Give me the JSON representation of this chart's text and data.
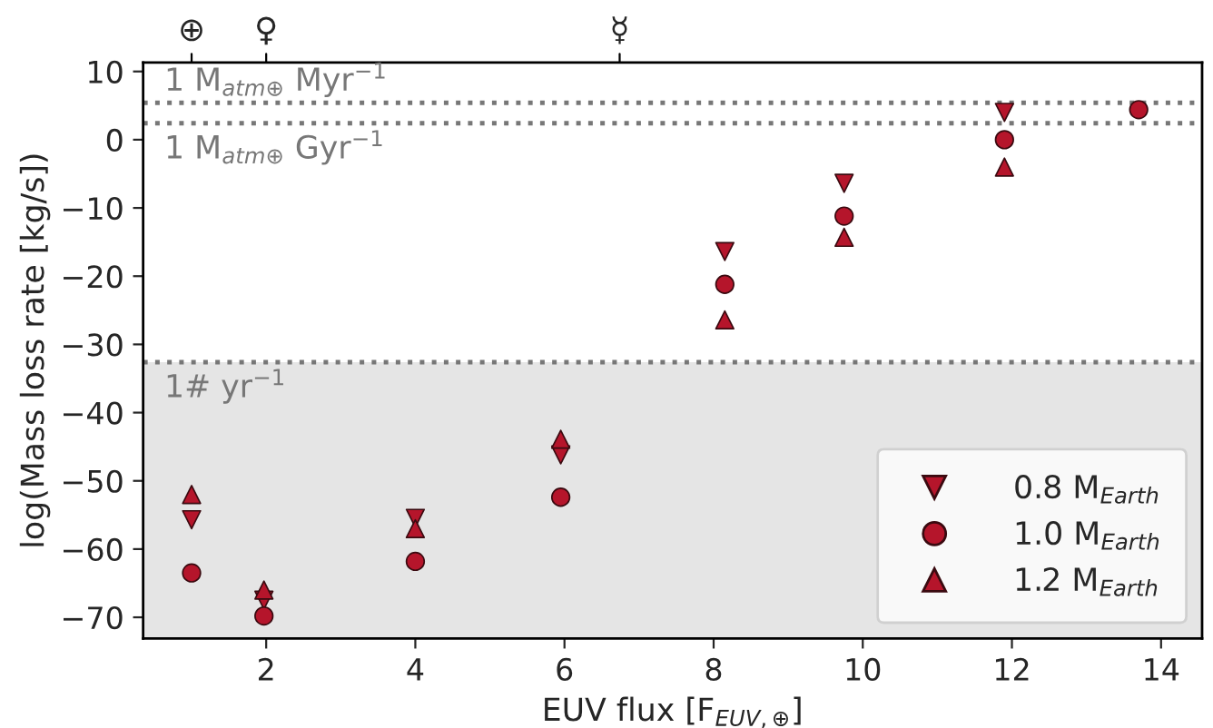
{
  "chart_data": {
    "type": "scatter",
    "xlabel": "EUV flux [F$_{EUV,⊕}$]",
    "ylabel": "log(Mass loss rate [kg/s])",
    "xlim": [
      0.35,
      14.55
    ],
    "xticks": [
      2,
      4,
      6,
      8,
      10,
      12,
      14
    ],
    "ylim": [
      -73.1,
      11.3
    ],
    "yticks": [
      -70,
      -60,
      -50,
      -40,
      -30,
      -20,
      -10,
      0,
      10
    ],
    "annotations": [
      {
        "text": "⊕",
        "x": 1
      },
      {
        "text": "♀",
        "x": 2
      },
      "☿"
    ],
    "series": [
      {
        "name": "0.8 M$_{Earth}$",
        "color": "#b5152b",
        "marker": "triangle_down",
        "x": [
          1.0,
          1.97,
          4.0,
          5.95,
          8.15,
          9.75,
          11.9
        ],
        "values": [
          -55.7,
          -67.5,
          -55.5,
          -46.2,
          -16.4,
          -6.4,
          4.0
        ]
      },
      {
        "name": "1.0 M$_{Earth}$",
        "color": "#b5152b",
        "marker": "circle",
        "x": [
          1.0,
          1.97,
          4.0,
          5.95,
          8.15,
          9.75,
          11.9,
          13.7
        ],
        "values": [
          -63.5,
          -69.8,
          -61.8,
          -52.4,
          -21.2,
          -11.2,
          0.0,
          4.4
        ]
      },
      {
        "name": "1.2 M$_{Earth}$",
        "color": "#b5152b",
        "marker": "triangle",
        "x": [
          1.0,
          1.97,
          4.0,
          5.95,
          8.15,
          9.75,
          11.9
        ],
        "values": [
          -52.0,
          -66.0,
          -57.0,
          -43.9,
          -26.4,
          -14.3,
          -4.0
        ]
      }
    ],
    "ref_lines": [
      {
        "axis": "y",
        "value": 5.4,
        "label": "1 M$_{atm⊕}$ Myr$^{−1}$",
        "color": "#777777",
        "line_style": "dotted"
      },
      {
        "axis": "y",
        "value": 2.4,
        "label": "1 M$_{atm⊕}$ Gyr$^{−1}$",
        "color": "#777777",
        "line_style": "dotted"
      },
      {
        "axis": "y",
        "value": -32.6,
        "label": "1# yr$^{−1}$",
        "color": "#777777",
        "line_style": "dotted"
      }
    ],
    "bands": [
      {
        "axis": "y",
        "from": -73.1,
        "to": -32.6,
        "color": "#e5e5e5"
      }
    ],
    "legend": "lower right",
    "grid": false
  }
}
